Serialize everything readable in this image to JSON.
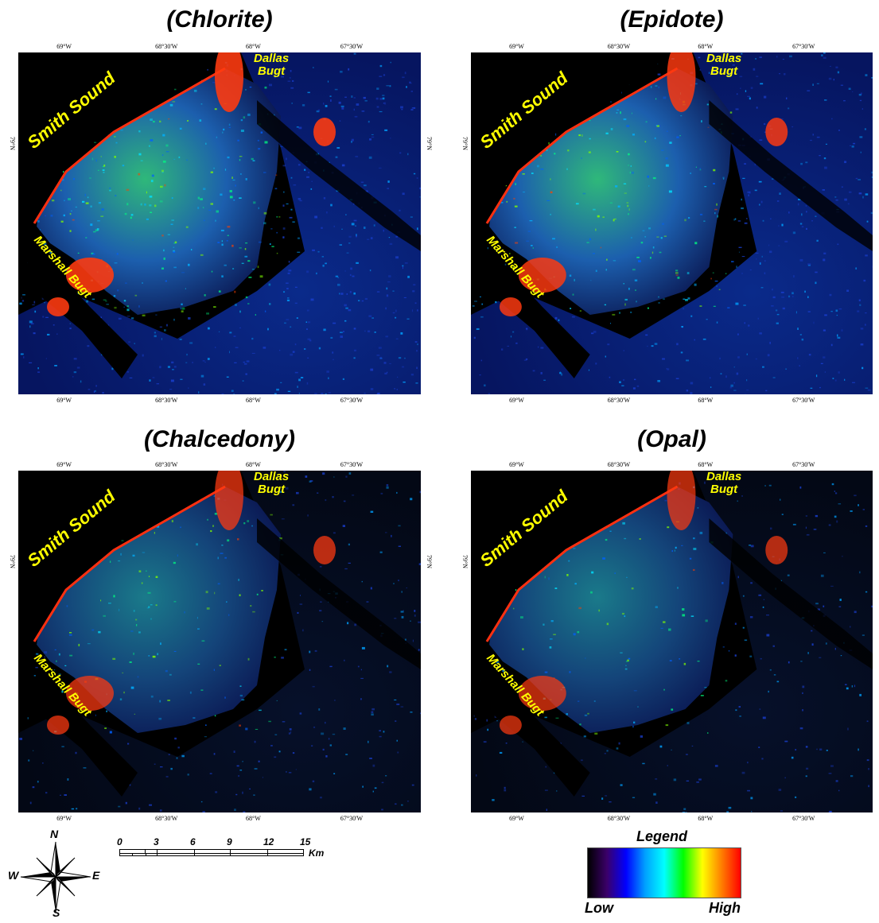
{
  "panels": [
    {
      "title": "(Chlorite)",
      "intensity": 0.85
    },
    {
      "title": "(Epidote)",
      "intensity": 0.7
    },
    {
      "title": "(Chalcedony)",
      "intensity": 0.45
    },
    {
      "title": "(Opal)",
      "intensity": 0.38
    }
  ],
  "lon_ticks": [
    "69°W",
    "68°30'W",
    "68°W",
    "67°30'W"
  ],
  "lat_tick": "79°N",
  "place_names": {
    "smith": "Smith Sound",
    "marshall": "Marshall Bugt",
    "dallas": "Dallas\nBugt"
  },
  "compass": {
    "north": "N",
    "south": "S",
    "east": "E",
    "west": "W"
  },
  "scale": {
    "ticks": [
      "0",
      "3",
      "6",
      "9",
      "12",
      "15"
    ],
    "unit": "Km"
  },
  "legend": {
    "title": "Legend",
    "low": "Low",
    "high": "High",
    "colors": [
      "#000000",
      "#3b0069",
      "#0000ff",
      "#00a0ff",
      "#00ffff",
      "#00ff00",
      "#ffff00",
      "#ff7f00",
      "#ff0000"
    ]
  }
}
